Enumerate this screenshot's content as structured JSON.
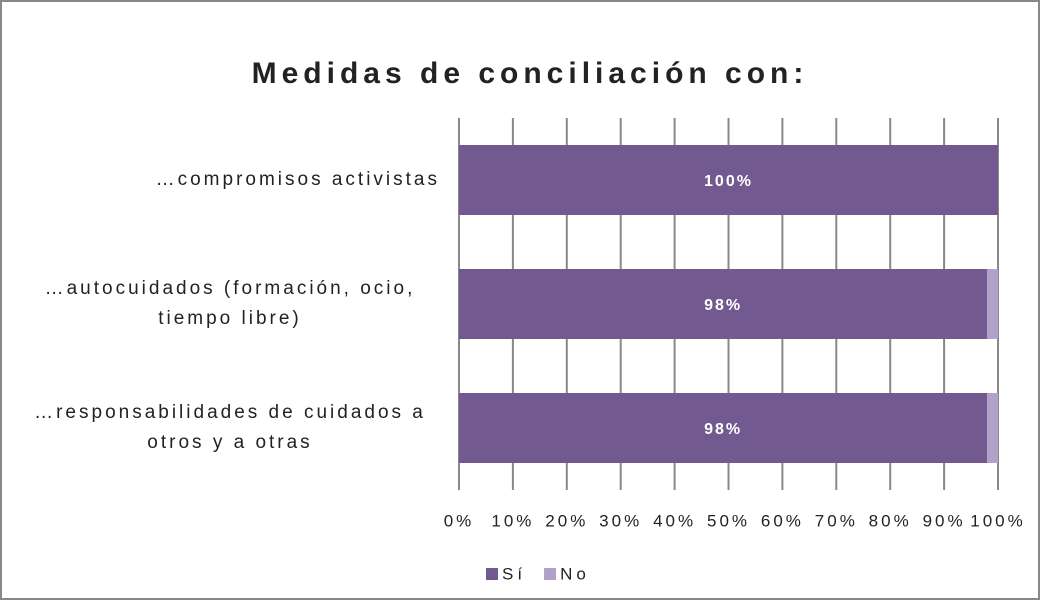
{
  "chart_data": {
    "type": "stacked_bar_horizontal",
    "title": "Medidas de conciliación con:",
    "categories": [
      "…compromisos activistas",
      "…autocuidados (formación, ocio, tiempo libre)",
      "…responsabilidades de cuidados a otros y a otras"
    ],
    "series": [
      {
        "name": "Sí",
        "color": "#725990",
        "values": [
          100,
          98,
          98
        ],
        "value_labels": [
          "100%",
          "98%",
          "98%"
        ]
      },
      {
        "name": "No",
        "color": "#b1a0c8",
        "values": [
          0,
          2,
          2
        ]
      }
    ],
    "xlim": [
      0,
      100
    ],
    "xticks": [
      {
        "value": 0,
        "label": "0%"
      },
      {
        "value": 10,
        "label": "10%"
      },
      {
        "value": 20,
        "label": "20%"
      },
      {
        "value": 30,
        "label": "30%"
      },
      {
        "value": 40,
        "label": "40%"
      },
      {
        "value": 50,
        "label": "50%"
      },
      {
        "value": 60,
        "label": "60%"
      },
      {
        "value": 70,
        "label": "70%"
      },
      {
        "value": 80,
        "label": "80%"
      },
      {
        "value": 90,
        "label": "90%"
      },
      {
        "value": 100,
        "label": "100%"
      }
    ],
    "grid": true,
    "legend": "bottom"
  }
}
